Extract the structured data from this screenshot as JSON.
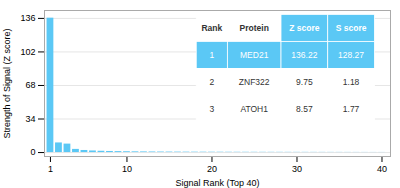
{
  "chart_data": {
    "type": "bar",
    "xlabel": "Signal Rank (Top 40)",
    "ylabel": "Strength of Signal (Z score)",
    "x": [
      1,
      2,
      3,
      4,
      5,
      6,
      7,
      8,
      9,
      10,
      11,
      12,
      13,
      14,
      15,
      16,
      17,
      18,
      19,
      20,
      21,
      22,
      23,
      24,
      25,
      26,
      27,
      28,
      29,
      30,
      31,
      32,
      33,
      34,
      35,
      36,
      37,
      38,
      39,
      40
    ],
    "values": [
      136.22,
      9.75,
      8.57,
      3.2,
      2.1,
      1.6,
      1.3,
      1.1,
      0.95,
      0.82,
      0.72,
      0.64,
      0.58,
      0.53,
      0.49,
      0.45,
      0.42,
      0.39,
      0.37,
      0.35,
      0.33,
      0.31,
      0.29,
      0.28,
      0.26,
      0.25,
      0.24,
      0.23,
      0.22,
      0.21,
      0.2,
      0.19,
      0.18,
      0.17,
      0.16,
      0.15,
      0.14,
      0.13,
      0.12,
      0.11
    ],
    "color": "#5bc8f5",
    "xlim": [
      0.3,
      41
    ],
    "xticks": [
      1,
      10,
      20,
      30,
      40
    ],
    "ylim": [
      -4,
      144
    ],
    "yticks": [
      0,
      34,
      68,
      102,
      136
    ],
    "grid": true,
    "table": {
      "headers": [
        "Rank",
        "Protein",
        "Z score",
        "S score"
      ],
      "rows": [
        [
          "1",
          "MED21",
          "136.22",
          "128.27"
        ],
        [
          "2",
          "ZNF322",
          "9.75",
          "1.18"
        ],
        [
          "3",
          "ATOH1",
          "8.57",
          "1.77"
        ]
      ]
    }
  }
}
